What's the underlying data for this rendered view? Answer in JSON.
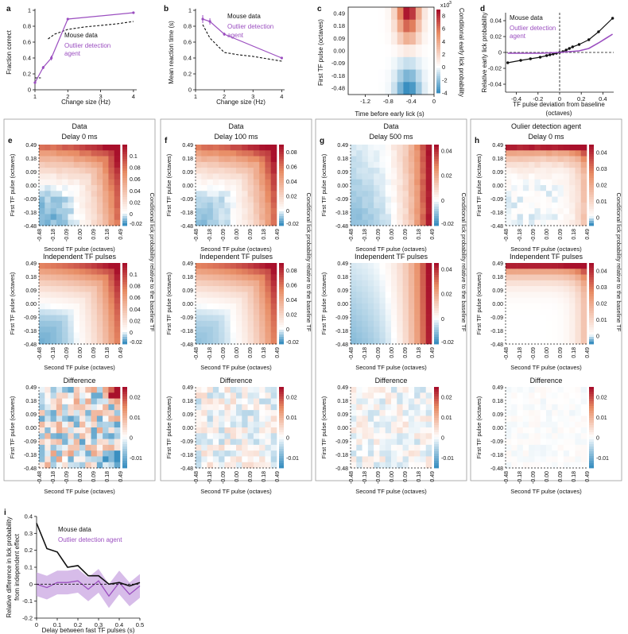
{
  "colors": {
    "mouse": "#111111",
    "agent": "#9b4fc0",
    "agent_band": "#c9a6e2",
    "cmap_low": "#3a8fc0",
    "cmap_mid": "#ffffff",
    "cmap_high": "#a8102b",
    "panel_border": "#9a9a9a"
  },
  "panel_letters": [
    "a",
    "b",
    "c",
    "d",
    "e",
    "f",
    "g",
    "h",
    "i"
  ],
  "panel_a": {
    "letter": "a",
    "ylabel": "Fraction correct",
    "xlabel": "Change size (Hz)",
    "xticks": [
      "1",
      "2",
      "3",
      "4"
    ],
    "yticks": [
      "0",
      "0.2",
      "0.4",
      "0.6",
      "0.8",
      "1"
    ],
    "legend": [
      "Mouse data",
      "Outlier detection",
      "agent"
    ]
  },
  "panel_b": {
    "letter": "b",
    "ylabel": "Mean reaction time (s)",
    "xlabel": "Change size (Hz)",
    "xticks": [
      "1",
      "2",
      "3",
      "4"
    ],
    "yticks": [
      "0",
      "0.2",
      "0.4",
      "0.6",
      "0.8",
      "1"
    ],
    "legend": [
      "Mouse data",
      "Outlier detection",
      "agent"
    ]
  },
  "panel_c": {
    "letter": "c",
    "ylabel": "First TF pulse (octaves)",
    "xlabel": "Time before early lick (s)",
    "xticks": [
      "-1.2",
      "-0.8",
      "-0.4",
      "0"
    ],
    "yticks": [
      "0.49",
      "0.18",
      "0.09",
      "0.00",
      "-0.09",
      "-0.18",
      "-0.48"
    ],
    "cbar_ticks": [
      "8",
      "6",
      "4",
      "2",
      "0",
      "-2",
      "-4"
    ],
    "cbar_exp": "x10",
    "cbar_exp_power": "-3",
    "cbar_label": "Conditional early lick probability"
  },
  "panel_d": {
    "letter": "d",
    "ylabel": "Relative early lick probability",
    "xlabel": "TF pulse deviation from baseline",
    "xlabel2": "(octaves)",
    "xticks": [
      "-0.4",
      "-0.2",
      "0",
      "0.2",
      "0.4"
    ],
    "yticks": [
      "0.04",
      "0.02",
      "0",
      "-0.02",
      "-0.04"
    ],
    "legend": [
      "Mouse data",
      "Outlier detection",
      "agent"
    ]
  },
  "heatmap_axes": {
    "ylabel": "First TF pulse (octaves)",
    "xlabel": "Second TF pulse (octaves)",
    "ticks": [
      "-0.48",
      "-0.18",
      "-0.09",
      "0.00",
      "0.09",
      "0.18",
      "0.49"
    ],
    "yticks": [
      "0.49",
      "0.18",
      "0.09",
      "0.00",
      "-0.09",
      "-0.18",
      "-0.48"
    ],
    "cbar_label": "Conditional lick probability relative to the baseline TF"
  },
  "column_e": {
    "letter": "e",
    "header": "Data",
    "delay": "Delay 0 ms",
    "row_titles": [
      "Independent TF pulses",
      "Difference"
    ],
    "cbar_top": [
      "0.1",
      "0.08",
      "0.06",
      "0.04",
      "0.02",
      "0",
      "-0.02"
    ],
    "cbar_mid": [
      "0.1",
      "0.08",
      "0.06",
      "0.04",
      "0.02",
      "0",
      "-0.02"
    ],
    "cbar_diff": [
      "0.02",
      "0.01",
      "0",
      "-0.01"
    ]
  },
  "column_f": {
    "letter": "f",
    "header": "Data",
    "delay": "Delay 100 ms",
    "row_titles": [
      "Independent TF pulses",
      "Difference"
    ],
    "cbar_top": [
      "0.08",
      "0.06",
      "0.04",
      "0.02",
      "0",
      "-0.02"
    ],
    "cbar_mid": [
      "0.08",
      "0.06",
      "0.04",
      "0.02",
      "0",
      "-0.02"
    ],
    "cbar_diff": [
      "0.02",
      "0.01",
      "0",
      "-0.01"
    ]
  },
  "column_g": {
    "letter": "g",
    "header": "Data",
    "delay": "Delay 500 ms",
    "row_titles": [
      "Independent TF pulses",
      "Difference"
    ],
    "cbar_top": [
      "0.04",
      "0.02",
      "0",
      "-0.02"
    ],
    "cbar_mid": [
      "0.04",
      "0.02",
      "0",
      "-0.02"
    ],
    "cbar_diff": [
      "0.02",
      "0.01",
      "0",
      "-0.01"
    ]
  },
  "column_h": {
    "letter": "h",
    "header": "Oulier detection agent",
    "delay": "Delay 0 ms",
    "row_titles": [
      "Independent TF pulses",
      "Difference"
    ],
    "cbar_top": [
      "0.04",
      "0.03",
      "0.02",
      "0.01",
      "0"
    ],
    "cbar_mid": [
      "0.04",
      "0.03",
      "0.02",
      "0.01",
      "0"
    ],
    "cbar_diff": [
      "0.02",
      "0.01",
      "0",
      "-0.01"
    ]
  },
  "panel_i": {
    "letter": "i",
    "ylabel": "Relative difference in lick probability",
    "ylabel2": "from independent effect",
    "xlabel": "Delay between fast TF pulses (s)",
    "xticks": [
      "0",
      "0.1",
      "0.2",
      "0.3",
      "0.4",
      "0.5"
    ],
    "yticks": [
      "0.4",
      "0.3",
      "0.2",
      "0.1",
      "0",
      "-0.1",
      "-0.2"
    ],
    "legend": [
      "Mouse data",
      "Outlier detection agent"
    ]
  },
  "chart_data": [
    {
      "id": "a",
      "type": "line",
      "title": "",
      "xlabel": "Change size (Hz)",
      "ylabel": "Fraction correct",
      "xlim": [
        1,
        4.1
      ],
      "ylim": [
        0,
        1
      ],
      "series": [
        {
          "name": "Mouse data",
          "style": "dashed",
          "x": [
            1.0,
            1.2,
            1.4,
            1.6,
            2.0,
            2.5,
            3.0,
            3.5,
            4.0
          ],
          "y": [
            0.15,
            0.15,
            0.64,
            0.7,
            0.76,
            0.79,
            0.81,
            0.83,
            0.86
          ]
        },
        {
          "name": "Outlier detection agent",
          "style": "solid",
          "x": [
            1.0,
            1.25,
            1.5,
            2.0,
            4.0
          ],
          "y": [
            0.09,
            0.28,
            0.4,
            0.89,
            0.97
          ],
          "err": [
            0.01,
            0.02,
            0.03,
            0.01,
            0.01
          ]
        }
      ]
    },
    {
      "id": "b",
      "type": "line",
      "title": "",
      "xlabel": "Change size (Hz)",
      "ylabel": "Mean reaction time (s)",
      "xlim": [
        1,
        4.1
      ],
      "ylim": [
        0,
        1
      ],
      "series": [
        {
          "name": "Mouse data",
          "style": "dashed",
          "x": [
            1.25,
            1.5,
            2.0,
            2.5,
            3.0,
            3.5,
            4.0
          ],
          "y": [
            0.82,
            0.65,
            0.47,
            0.44,
            0.42,
            0.39,
            0.36
          ]
        },
        {
          "name": "Outlier detection agent",
          "style": "solid",
          "x": [
            1.25,
            1.5,
            2.0,
            4.0
          ],
          "y": [
            0.89,
            0.86,
            0.7,
            0.4
          ],
          "err": [
            0.05,
            0.04,
            0.02,
            0.01
          ]
        }
      ]
    },
    {
      "id": "c",
      "type": "heatmap",
      "title": "",
      "xlabel": "Time before early lick (s)",
      "ylabel": "First TF pulse (octaves)",
      "xlim": [
        -1.5,
        0
      ],
      "clim": [
        -0.004,
        0.009
      ],
      "rows": [
        "0.49",
        "0.18",
        "0.09",
        "0.00",
        "-0.09",
        "-0.18",
        "-0.48"
      ],
      "description_values": "peak ~0.009 at 0.49 octaves near -0.45 s; minimum ~-0.004 at -0.48 octaves near -0.45 s"
    },
    {
      "id": "d",
      "type": "line",
      "title": "",
      "xlabel": "TF pulse deviation from baseline (octaves)",
      "ylabel": "Relative early lick probability",
      "xlim": [
        -0.5,
        0.5
      ],
      "ylim": [
        -0.05,
        0.05
      ],
      "series": [
        {
          "name": "Mouse data",
          "style": "solid-markers",
          "x": [
            -0.48,
            -0.36,
            -0.27,
            -0.18,
            -0.12,
            -0.09,
            -0.06,
            -0.03,
            0.0,
            0.03,
            0.06,
            0.09,
            0.12,
            0.18,
            0.27,
            0.36,
            0.49
          ],
          "y": [
            -0.013,
            -0.01,
            -0.008,
            -0.006,
            -0.004,
            -0.003,
            -0.002,
            -0.001,
            0.0,
            0.001,
            0.003,
            0.005,
            0.007,
            0.01,
            0.016,
            0.026,
            0.043
          ]
        },
        {
          "name": "Outlier detection agent",
          "style": "solid",
          "x": [
            -0.48,
            -0.36,
            -0.27,
            -0.18,
            -0.09,
            0.0,
            0.09,
            0.18,
            0.27,
            0.36,
            0.49
          ],
          "y": [
            -0.001,
            -0.001,
            -0.001,
            -0.001,
            -0.0005,
            0.0,
            0.001,
            0.002,
            0.005,
            0.012,
            0.023
          ]
        }
      ]
    },
    {
      "id": "e-h",
      "type": "heatmap",
      "xlabel": "Second TF pulse (octaves)",
      "ylabel": "First TF pulse (octaves)",
      "axis_values": [
        "-0.48",
        "-0.18",
        "-0.09",
        "0.00",
        "0.09",
        "0.18",
        "0.49"
      ],
      "panels": [
        {
          "id": "e",
          "title": "Data Delay 0 ms",
          "clim": [
            -0.02,
            0.12
          ],
          "diff_clim": [
            -0.015,
            0.025
          ],
          "pattern": "max_sum",
          "diff_amp": 0.012
        },
        {
          "id": "f",
          "title": "Data Delay 100 ms",
          "clim": [
            -0.02,
            0.09
          ],
          "diff_clim": [
            -0.015,
            0.025
          ],
          "pattern": "max_sum",
          "diff_amp": 0.005
        },
        {
          "id": "g",
          "title": "Data Delay 500 ms",
          "clim": [
            -0.02,
            0.045
          ],
          "diff_clim": [
            -0.015,
            0.025
          ],
          "pattern": "second_pulse",
          "diff_amp": 0.004
        },
        {
          "id": "h",
          "title": "Oulier detection agent Delay 0 ms",
          "clim": [
            -0.005,
            0.045
          ],
          "diff_clim": [
            -0.015,
            0.025
          ],
          "pattern": "first_pulse",
          "diff_amp": 0.001
        }
      ]
    },
    {
      "id": "i",
      "type": "line",
      "title": "",
      "xlabel": "Delay between fast TF pulses (s)",
      "ylabel": "Relative difference in lick probability from independent effect",
      "xlim": [
        0,
        0.5
      ],
      "ylim": [
        -0.2,
        0.4
      ],
      "series": [
        {
          "name": "Mouse data",
          "style": "solid",
          "x": [
            0,
            0.05,
            0.1,
            0.15,
            0.2,
            0.25,
            0.3,
            0.35,
            0.4,
            0.45,
            0.5
          ],
          "y": [
            0.36,
            0.21,
            0.19,
            0.1,
            0.11,
            0.05,
            0.05,
            0.0,
            0.01,
            -0.01,
            0.01
          ]
        },
        {
          "name": "Outlier detection agent",
          "style": "solid-band",
          "x": [
            0,
            0.05,
            0.1,
            0.15,
            0.2,
            0.25,
            0.3,
            0.35,
            0.4,
            0.45,
            0.5
          ],
          "y": [
            0.0,
            -0.02,
            0.01,
            0.01,
            0.02,
            -0.03,
            0.02,
            -0.07,
            0.01,
            -0.06,
            -0.01
          ],
          "band": 0.07
        },
        {
          "name": "zero",
          "style": "dashed",
          "x": [
            0,
            0.5
          ],
          "y": [
            0,
            0
          ]
        }
      ]
    }
  ]
}
